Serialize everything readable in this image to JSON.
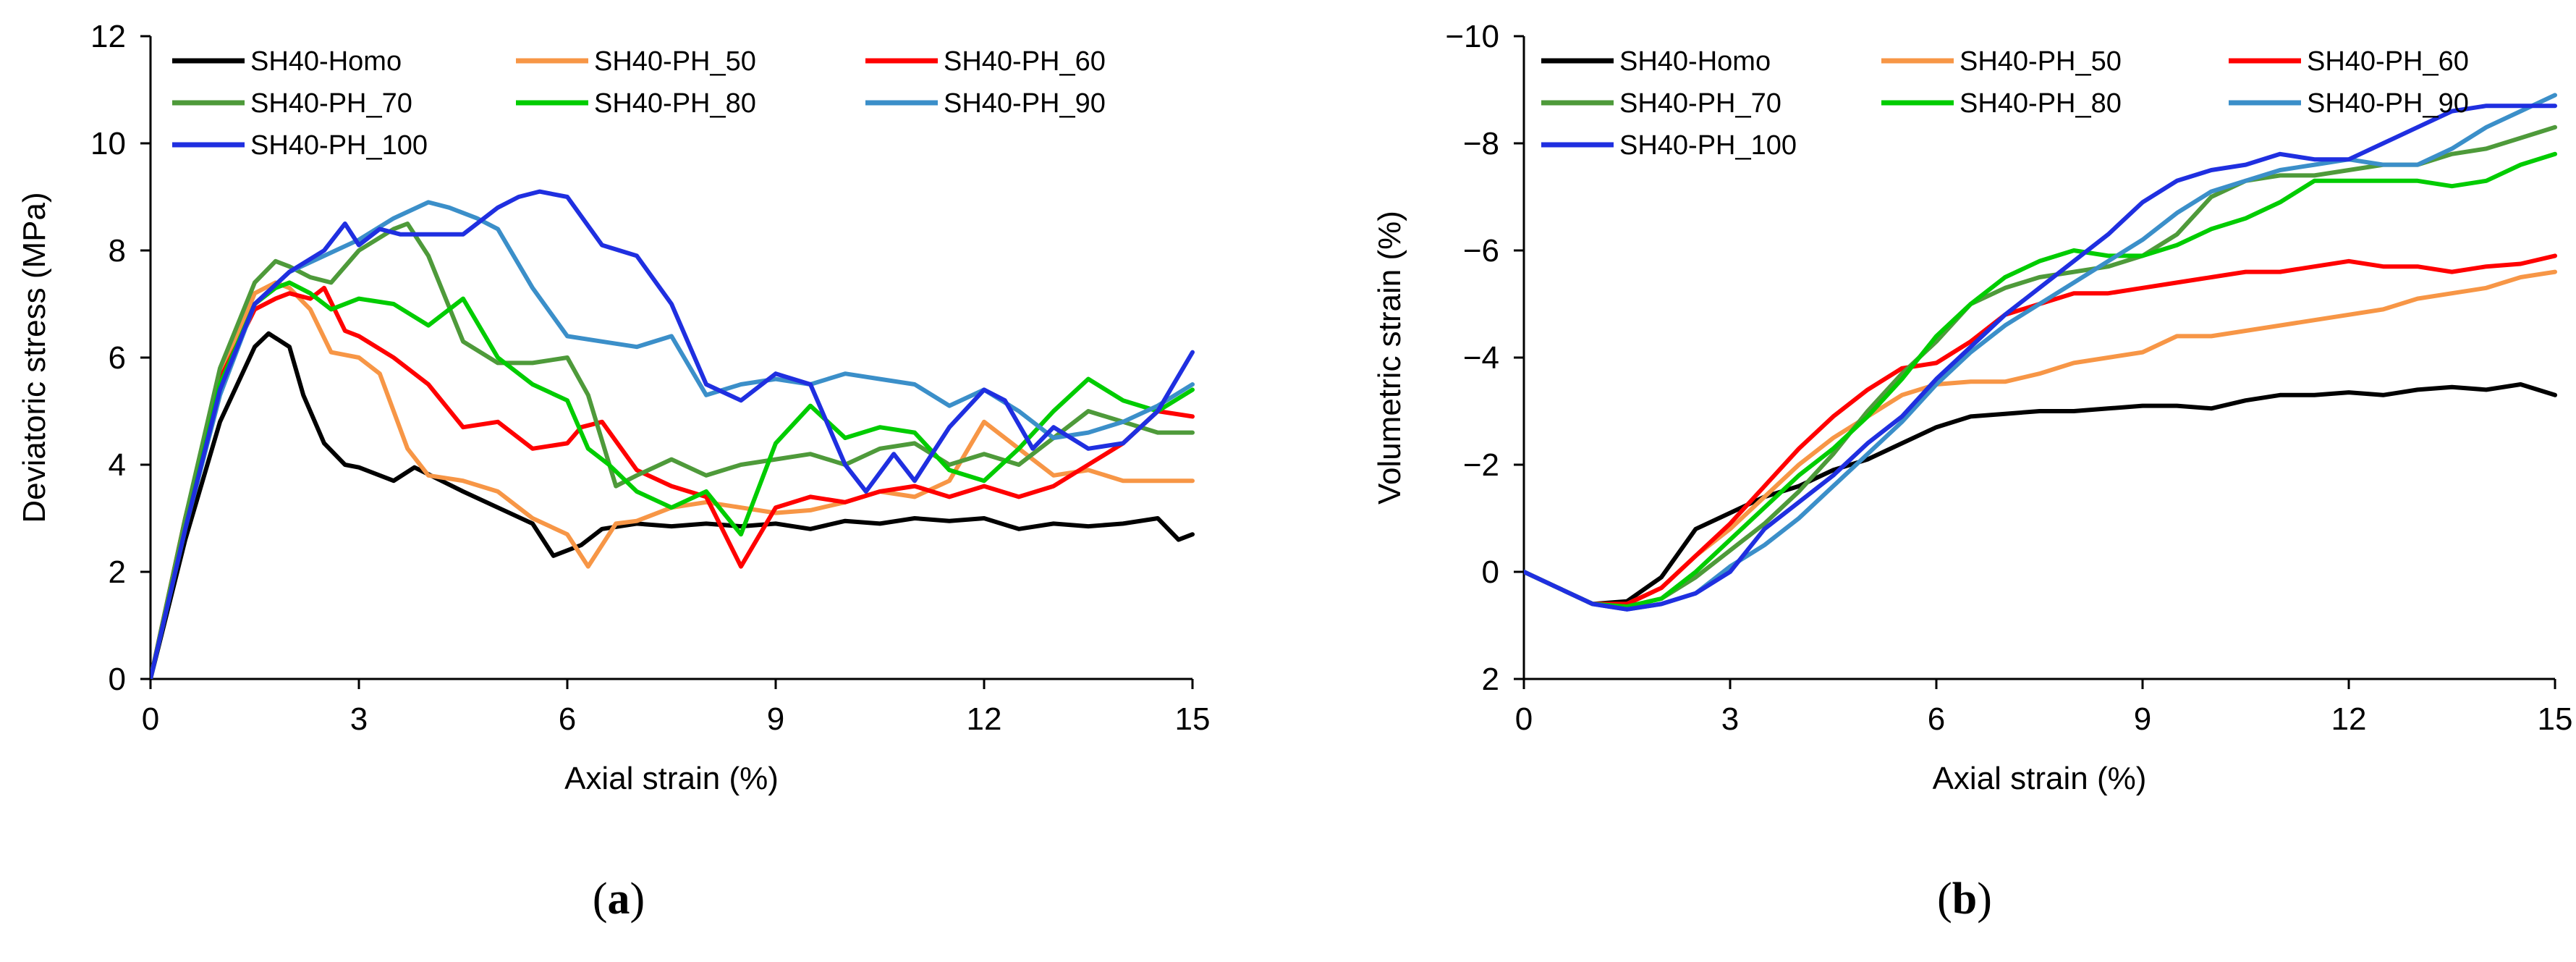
{
  "chart_data": [
    {
      "type": "line",
      "panel_label": "a",
      "title": "",
      "xlabel": "Axial strain (%)",
      "ylabel": "Deviatoric stress (MPa)",
      "xlim": [
        0,
        15
      ],
      "ylim": [
        0,
        12
      ],
      "xticks": [
        0,
        3,
        6,
        9,
        12,
        15
      ],
      "yticks": [
        0,
        2,
        4,
        6,
        8,
        10,
        12
      ],
      "grid": false,
      "legend_position": "top-left",
      "series": [
        {
          "name": "SH40-Homo",
          "color": "#000000",
          "x": [
            0,
            0.5,
            1.0,
            1.5,
            1.7,
            2.0,
            2.2,
            2.5,
            2.8,
            3.0,
            3.5,
            3.8,
            4.5,
            5.0,
            5.5,
            5.8,
            6.2,
            6.5,
            7.0,
            7.5,
            8.0,
            8.5,
            9.0,
            9.5,
            10.0,
            10.5,
            11.0,
            11.5,
            12.0,
            12.5,
            13.0,
            13.5,
            14.0,
            14.5,
            14.8,
            15.0
          ],
          "y": [
            0,
            2.6,
            4.8,
            6.2,
            6.45,
            6.2,
            5.3,
            4.4,
            4.0,
            3.95,
            3.7,
            3.95,
            3.5,
            3.2,
            2.9,
            2.3,
            2.5,
            2.8,
            2.9,
            2.85,
            2.9,
            2.85,
            2.9,
            2.8,
            2.95,
            2.9,
            3.0,
            2.95,
            3.0,
            2.8,
            2.9,
            2.85,
            2.9,
            3.0,
            2.6,
            2.7
          ]
        },
        {
          "name": "SH40-PH_50",
          "color": "#F79646",
          "x": [
            0,
            0.5,
            1.0,
            1.5,
            1.8,
            2.0,
            2.3,
            2.6,
            3.0,
            3.3,
            3.7,
            4.0,
            4.5,
            5.0,
            5.5,
            6.0,
            6.3,
            6.7,
            7.0,
            7.5,
            8.0,
            8.5,
            9.0,
            9.5,
            10.0,
            10.5,
            11.0,
            11.5,
            12.0,
            12.5,
            13.0,
            13.5,
            14.0,
            14.5,
            15.0
          ],
          "y": [
            0,
            3.0,
            5.6,
            7.2,
            7.4,
            7.3,
            6.9,
            6.1,
            6.0,
            5.7,
            4.3,
            3.8,
            3.7,
            3.5,
            3.0,
            2.7,
            2.1,
            2.9,
            2.95,
            3.2,
            3.3,
            3.2,
            3.1,
            3.15,
            3.3,
            3.5,
            3.4,
            3.7,
            4.8,
            4.3,
            3.8,
            3.9,
            3.7,
            3.7,
            3.7
          ]
        },
        {
          "name": "SH40-PH_60",
          "color": "#FF0000",
          "x": [
            0,
            0.5,
            1.0,
            1.5,
            1.8,
            2.0,
            2.3,
            2.5,
            2.8,
            3.0,
            3.5,
            4.0,
            4.5,
            5.0,
            5.5,
            6.0,
            6.2,
            6.5,
            7.0,
            7.5,
            8.0,
            8.5,
            9.0,
            9.5,
            10.0,
            10.5,
            11.0,
            11.5,
            12.0,
            12.5,
            13.0,
            13.5,
            14.0,
            14.5,
            15.0
          ],
          "y": [
            0,
            3.0,
            5.6,
            6.9,
            7.1,
            7.2,
            7.1,
            7.3,
            6.5,
            6.4,
            6.0,
            5.5,
            4.7,
            4.8,
            4.3,
            4.4,
            4.7,
            4.8,
            3.9,
            3.6,
            3.4,
            2.1,
            3.2,
            3.4,
            3.3,
            3.5,
            3.6,
            3.4,
            3.6,
            3.4,
            3.6,
            4.0,
            4.4,
            5.0,
            4.9
          ]
        },
        {
          "name": "SH40-PH_70",
          "color": "#4E9A3A",
          "x": [
            0,
            0.5,
            1.0,
            1.5,
            1.8,
            2.0,
            2.3,
            2.6,
            3.0,
            3.5,
            3.7,
            4.0,
            4.5,
            5.0,
            5.5,
            6.0,
            6.3,
            6.7,
            7.0,
            7.5,
            8.0,
            8.5,
            9.0,
            9.5,
            10.0,
            10.5,
            11.0,
            11.5,
            12.0,
            12.5,
            13.0,
            13.5,
            14.0,
            14.5,
            15.0
          ],
          "y": [
            0,
            3.0,
            5.8,
            7.4,
            7.8,
            7.7,
            7.5,
            7.4,
            8.0,
            8.4,
            8.5,
            7.9,
            6.3,
            5.9,
            5.9,
            6.0,
            5.3,
            3.6,
            3.8,
            4.1,
            3.8,
            4.0,
            4.1,
            4.2,
            4.0,
            4.3,
            4.4,
            4.0,
            4.2,
            4.0,
            4.5,
            5.0,
            4.8,
            4.6,
            4.6
          ]
        },
        {
          "name": "SH40-PH_80",
          "color": "#00CC00",
          "x": [
            0,
            0.5,
            1.0,
            1.5,
            1.8,
            2.0,
            2.3,
            2.6,
            3.0,
            3.5,
            4.0,
            4.5,
            5.0,
            5.5,
            6.0,
            6.3,
            6.6,
            7.0,
            7.5,
            8.0,
            8.5,
            9.0,
            9.5,
            10.0,
            10.5,
            11.0,
            11.5,
            12.0,
            12.5,
            13.0,
            13.5,
            14.0,
            14.5,
            15.0
          ],
          "y": [
            0,
            2.8,
            5.5,
            7.0,
            7.3,
            7.4,
            7.2,
            6.9,
            7.1,
            7.0,
            6.6,
            7.1,
            6.0,
            5.5,
            5.2,
            4.3,
            4.0,
            3.5,
            3.2,
            3.5,
            2.7,
            4.4,
            5.1,
            4.5,
            4.7,
            4.6,
            3.9,
            3.7,
            4.3,
            5.0,
            5.6,
            5.2,
            5.0,
            5.4
          ]
        },
        {
          "name": "SH40-PH_90",
          "color": "#3B8FC9",
          "x": [
            0,
            0.5,
            1.0,
            1.5,
            2.0,
            2.5,
            3.0,
            3.5,
            4.0,
            4.3,
            4.7,
            5.0,
            5.5,
            6.0,
            6.5,
            7.0,
            7.5,
            8.0,
            8.5,
            9.0,
            9.5,
            10.0,
            10.5,
            11.0,
            11.5,
            12.0,
            12.5,
            13.0,
            13.5,
            14.0,
            14.5,
            15.0
          ],
          "y": [
            0,
            2.8,
            5.3,
            7.0,
            7.6,
            7.9,
            8.2,
            8.6,
            8.9,
            8.8,
            8.6,
            8.4,
            7.3,
            6.4,
            6.3,
            6.2,
            6.4,
            5.3,
            5.5,
            5.6,
            5.5,
            5.7,
            5.6,
            5.5,
            5.1,
            5.4,
            5.0,
            4.5,
            4.6,
            4.8,
            5.1,
            5.5
          ]
        },
        {
          "name": "SH40-PH_100",
          "color": "#1F2FE0",
          "x": [
            0,
            0.5,
            1.0,
            1.5,
            2.0,
            2.5,
            2.8,
            3.0,
            3.3,
            3.6,
            4.0,
            4.5,
            5.0,
            5.3,
            5.6,
            6.0,
            6.5,
            7.0,
            7.5,
            8.0,
            8.5,
            9.0,
            9.5,
            10.0,
            10.3,
            10.7,
            11.0,
            11.5,
            12.0,
            12.3,
            12.7,
            13.0,
            13.5,
            14.0,
            14.5,
            15.0
          ],
          "y": [
            0,
            2.8,
            5.4,
            7.0,
            7.6,
            8.0,
            8.5,
            8.1,
            8.4,
            8.3,
            8.3,
            8.3,
            8.8,
            9.0,
            9.1,
            9.0,
            8.1,
            7.9,
            7.0,
            5.5,
            5.2,
            5.7,
            5.5,
            4.0,
            3.5,
            4.2,
            3.7,
            4.7,
            5.4,
            5.2,
            4.3,
            4.7,
            4.3,
            4.4,
            5.0,
            6.1
          ]
        }
      ]
    },
    {
      "type": "line",
      "panel_label": "b",
      "title": "",
      "xlabel": "Axial strain (%)",
      "ylabel": "Volumetric strain (%)",
      "xlim": [
        0,
        15
      ],
      "ylim": [
        2,
        -10
      ],
      "y_axis_inverted": true,
      "xticks": [
        0,
        3,
        6,
        9,
        12,
        15
      ],
      "yticks": [
        2,
        0,
        -2,
        -4,
        -6,
        -8,
        -10
      ],
      "grid": false,
      "legend_position": "top-left",
      "series": [
        {
          "name": "SH40-Homo",
          "color": "#000000",
          "x": [
            0,
            0.5,
            1.0,
            1.5,
            2.0,
            2.5,
            3.0,
            3.5,
            4.0,
            4.5,
            5.0,
            5.5,
            6.0,
            6.5,
            7.0,
            7.5,
            8.0,
            8.5,
            9.0,
            9.5,
            10.0,
            10.5,
            11.0,
            11.5,
            12.0,
            12.5,
            13.0,
            13.5,
            14.0,
            14.5,
            15.0
          ],
          "y": [
            0,
            0.3,
            0.6,
            0.55,
            0.1,
            -0.8,
            -1.1,
            -1.4,
            -1.6,
            -1.9,
            -2.1,
            -2.4,
            -2.7,
            -2.9,
            -2.95,
            -3.0,
            -3.0,
            -3.05,
            -3.1,
            -3.1,
            -3.05,
            -3.2,
            -3.3,
            -3.3,
            -3.35,
            -3.3,
            -3.4,
            -3.45,
            -3.4,
            -3.5,
            -3.3
          ]
        },
        {
          "name": "SH40-PH_50",
          "color": "#F79646",
          "x": [
            0,
            0.5,
            1.0,
            1.5,
            2.0,
            2.5,
            3.0,
            3.5,
            4.0,
            4.5,
            5.0,
            5.5,
            6.0,
            6.5,
            7.0,
            7.5,
            8.0,
            8.5,
            9.0,
            9.5,
            10.0,
            10.5,
            11.0,
            11.5,
            12.0,
            12.5,
            13.0,
            13.5,
            14.0,
            14.5,
            15.0
          ],
          "y": [
            0,
            0.3,
            0.6,
            0.6,
            0.3,
            -0.3,
            -0.8,
            -1.4,
            -2.0,
            -2.5,
            -2.9,
            -3.3,
            -3.5,
            -3.55,
            -3.55,
            -3.7,
            -3.9,
            -4.0,
            -4.1,
            -4.4,
            -4.4,
            -4.5,
            -4.6,
            -4.7,
            -4.8,
            -4.9,
            -5.1,
            -5.2,
            -5.3,
            -5.5,
            -5.6
          ]
        },
        {
          "name": "SH40-PH_60",
          "color": "#FF0000",
          "x": [
            0,
            0.5,
            1.0,
            1.5,
            2.0,
            2.5,
            3.0,
            3.5,
            4.0,
            4.5,
            5.0,
            5.5,
            6.0,
            6.5,
            7.0,
            7.5,
            8.0,
            8.5,
            9.0,
            9.5,
            10.0,
            10.5,
            11.0,
            11.5,
            12.0,
            12.5,
            13.0,
            13.5,
            14.0,
            14.5,
            15.0
          ],
          "y": [
            0,
            0.3,
            0.6,
            0.6,
            0.3,
            -0.3,
            -0.9,
            -1.6,
            -2.3,
            -2.9,
            -3.4,
            -3.8,
            -3.9,
            -4.3,
            -4.8,
            -5.0,
            -5.2,
            -5.2,
            -5.3,
            -5.4,
            -5.5,
            -5.6,
            -5.6,
            -5.7,
            -5.8,
            -5.7,
            -5.7,
            -5.6,
            -5.7,
            -5.75,
            -5.9
          ]
        },
        {
          "name": "SH40-PH_70",
          "color": "#4E9A3A",
          "x": [
            0,
            0.5,
            1.0,
            1.5,
            2.0,
            2.5,
            3.0,
            3.5,
            4.0,
            4.5,
            5.0,
            5.5,
            6.0,
            6.5,
            7.0,
            7.5,
            8.0,
            8.5,
            9.0,
            9.5,
            10.0,
            10.5,
            11.0,
            11.5,
            12.0,
            12.5,
            13.0,
            13.5,
            14.0,
            14.5,
            15.0
          ],
          "y": [
            0,
            0.3,
            0.6,
            0.65,
            0.5,
            0.1,
            -0.4,
            -0.9,
            -1.5,
            -2.2,
            -3.0,
            -3.7,
            -4.3,
            -5.0,
            -5.3,
            -5.5,
            -5.6,
            -5.7,
            -5.9,
            -6.3,
            -7.0,
            -7.3,
            -7.4,
            -7.4,
            -7.5,
            -7.6,
            -7.6,
            -7.8,
            -7.9,
            -8.1,
            -8.3
          ]
        },
        {
          "name": "SH40-PH_80",
          "color": "#00CC00",
          "x": [
            0,
            0.5,
            1.0,
            1.5,
            2.0,
            2.5,
            3.0,
            3.5,
            4.0,
            4.5,
            5.0,
            5.5,
            6.0,
            6.5,
            7.0,
            7.5,
            8.0,
            8.5,
            9.0,
            9.5,
            10.0,
            10.5,
            11.0,
            11.5,
            12.0,
            12.5,
            13.0,
            13.5,
            14.0,
            14.5,
            15.0
          ],
          "y": [
            0,
            0.3,
            0.6,
            0.65,
            0.5,
            0.0,
            -0.6,
            -1.2,
            -1.8,
            -2.3,
            -2.9,
            -3.6,
            -4.4,
            -5.0,
            -5.5,
            -5.8,
            -6.0,
            -5.9,
            -5.9,
            -6.1,
            -6.4,
            -6.6,
            -6.9,
            -7.3,
            -7.3,
            -7.3,
            -7.3,
            -7.2,
            -7.3,
            -7.6,
            -7.8
          ]
        },
        {
          "name": "SH40-PH_90",
          "color": "#3B8FC9",
          "x": [
            0,
            0.5,
            1.0,
            1.5,
            2.0,
            2.5,
            3.0,
            3.5,
            4.0,
            4.5,
            5.0,
            5.5,
            6.0,
            6.5,
            7.0,
            7.5,
            8.0,
            8.5,
            9.0,
            9.5,
            10.0,
            10.5,
            11.0,
            11.5,
            12.0,
            12.5,
            13.0,
            13.5,
            14.0,
            14.5,
            15.0
          ],
          "y": [
            0,
            0.3,
            0.6,
            0.7,
            0.6,
            0.4,
            -0.1,
            -0.5,
            -1.0,
            -1.6,
            -2.2,
            -2.8,
            -3.5,
            -4.1,
            -4.6,
            -5.0,
            -5.4,
            -5.8,
            -6.2,
            -6.7,
            -7.1,
            -7.3,
            -7.5,
            -7.6,
            -7.7,
            -7.6,
            -7.6,
            -7.9,
            -8.3,
            -8.6,
            -8.9
          ]
        },
        {
          "name": "SH40-PH_100",
          "color": "#1F2FE0",
          "x": [
            0,
            0.5,
            1.0,
            1.5,
            2.0,
            2.5,
            3.0,
            3.5,
            4.0,
            4.5,
            5.0,
            5.5,
            6.0,
            6.5,
            7.0,
            7.5,
            8.0,
            8.5,
            9.0,
            9.5,
            10.0,
            10.5,
            11.0,
            11.5,
            12.0,
            12.5,
            13.0,
            13.5,
            14.0,
            14.5,
            15.0
          ],
          "y": [
            0,
            0.3,
            0.6,
            0.7,
            0.6,
            0.4,
            0.0,
            -0.8,
            -1.3,
            -1.8,
            -2.4,
            -2.9,
            -3.6,
            -4.2,
            -4.8,
            -5.3,
            -5.8,
            -6.3,
            -6.9,
            -7.3,
            -7.5,
            -7.6,
            -7.8,
            -7.7,
            -7.7,
            -8.0,
            -8.3,
            -8.6,
            -8.7,
            -8.7,
            -8.7
          ]
        }
      ]
    }
  ]
}
